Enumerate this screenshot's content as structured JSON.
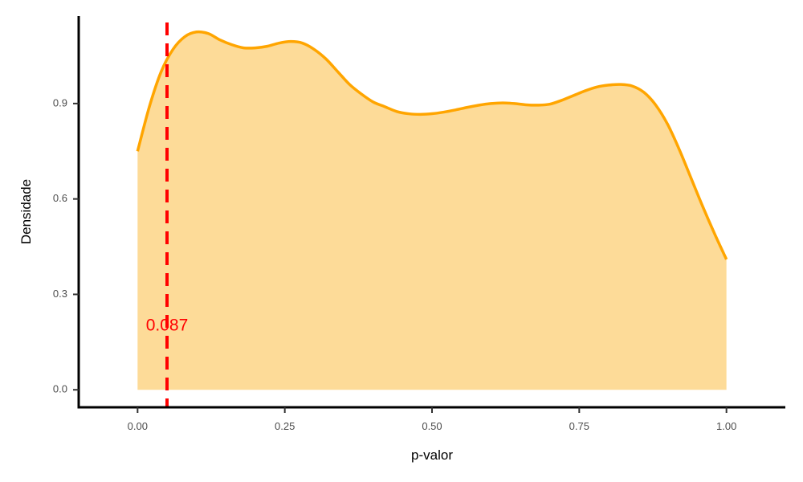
{
  "chart_data": {
    "type": "area",
    "title": "",
    "xlabel": "p-valor",
    "ylabel": "Densidade",
    "xlim": [
      -0.1,
      1.1
    ],
    "ylim": [
      -0.055,
      1.175
    ],
    "x_ticks": [
      0.0,
      0.25,
      0.5,
      0.75,
      1.0
    ],
    "x_tick_labels": [
      "0.00",
      "0.25",
      "0.50",
      "0.75",
      "1.00"
    ],
    "y_ticks": [
      0.0,
      0.3,
      0.6,
      0.9
    ],
    "y_tick_labels": [
      "0.0",
      "0.3",
      "0.6",
      "0.9"
    ],
    "grid": false,
    "legend": "none",
    "series": [
      {
        "x": [
          0.0,
          0.02,
          0.04,
          0.06,
          0.08,
          0.1,
          0.12,
          0.14,
          0.16,
          0.18,
          0.2,
          0.22,
          0.24,
          0.26,
          0.28,
          0.3,
          0.32,
          0.34,
          0.36,
          0.38,
          0.4,
          0.42,
          0.44,
          0.46,
          0.48,
          0.5,
          0.52,
          0.54,
          0.56,
          0.58,
          0.6,
          0.62,
          0.64,
          0.66,
          0.68,
          0.7,
          0.72,
          0.74,
          0.76,
          0.78,
          0.8,
          0.82,
          0.84,
          0.86,
          0.88,
          0.9,
          0.92,
          0.94,
          0.96,
          0.98,
          1.0
        ],
        "values": [
          0.75,
          0.89,
          1.0,
          1.07,
          1.11,
          1.125,
          1.12,
          1.1,
          1.085,
          1.075,
          1.075,
          1.08,
          1.09,
          1.095,
          1.09,
          1.07,
          1.04,
          1.0,
          0.96,
          0.93,
          0.905,
          0.89,
          0.875,
          0.868,
          0.866,
          0.868,
          0.873,
          0.88,
          0.888,
          0.895,
          0.9,
          0.902,
          0.9,
          0.896,
          0.895,
          0.898,
          0.91,
          0.925,
          0.94,
          0.952,
          0.958,
          0.96,
          0.955,
          0.935,
          0.895,
          0.835,
          0.755,
          0.665,
          0.575,
          0.49,
          0.41
        ],
        "line_color": "#FFA500",
        "fill_color": "#FDDB98"
      }
    ],
    "reference_line": {
      "x": 0.05,
      "color": "#FF0000",
      "style": "dashed"
    },
    "annotations": [
      {
        "text": "0.087",
        "x": 0.05,
        "y": 0.2,
        "color": "#FF0000"
      }
    ]
  }
}
